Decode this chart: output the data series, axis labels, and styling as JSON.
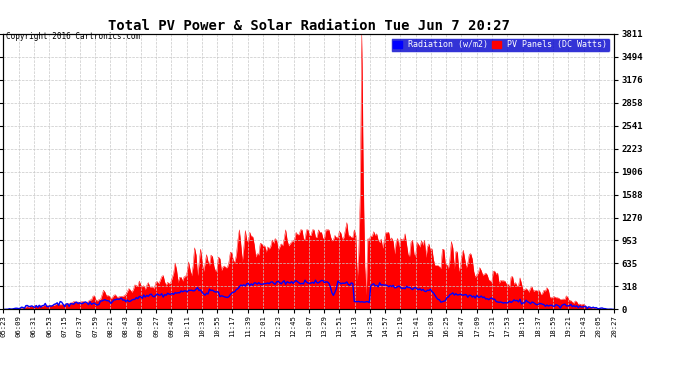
{
  "title": "Total PV Power & Solar Radiation Tue Jun 7 20:27",
  "copyright": "Copyright 2016 Cartronics.com",
  "legend_radiation": "Radiation (w/m2)",
  "legend_pv": "PV Panels (DC Watts)",
  "y_max": 3811.3,
  "y_min": 0.0,
  "y_ticks": [
    0.0,
    317.6,
    635.2,
    952.8,
    1270.4,
    1588.0,
    1905.6,
    2223.3,
    2540.9,
    2858.5,
    3176.1,
    3493.7,
    3811.3
  ],
  "background_color": "#ffffff",
  "plot_bg_color": "#ffffff",
  "grid_color": "#c8c8c8",
  "radiation_color": "#0000ff",
  "pv_color": "#ff0000",
  "n_points": 410,
  "x_labels": [
    "05:23",
    "06:09",
    "06:31",
    "06:53",
    "07:15",
    "07:37",
    "07:59",
    "08:21",
    "08:43",
    "09:05",
    "09:27",
    "09:49",
    "10:11",
    "10:33",
    "10:55",
    "11:17",
    "11:39",
    "12:01",
    "12:23",
    "12:45",
    "13:07",
    "13:29",
    "13:51",
    "14:13",
    "14:35",
    "14:57",
    "15:19",
    "15:41",
    "16:03",
    "16:25",
    "16:47",
    "17:09",
    "17:31",
    "17:53",
    "18:15",
    "18:37",
    "18:59",
    "19:21",
    "19:43",
    "20:05",
    "20:27"
  ]
}
